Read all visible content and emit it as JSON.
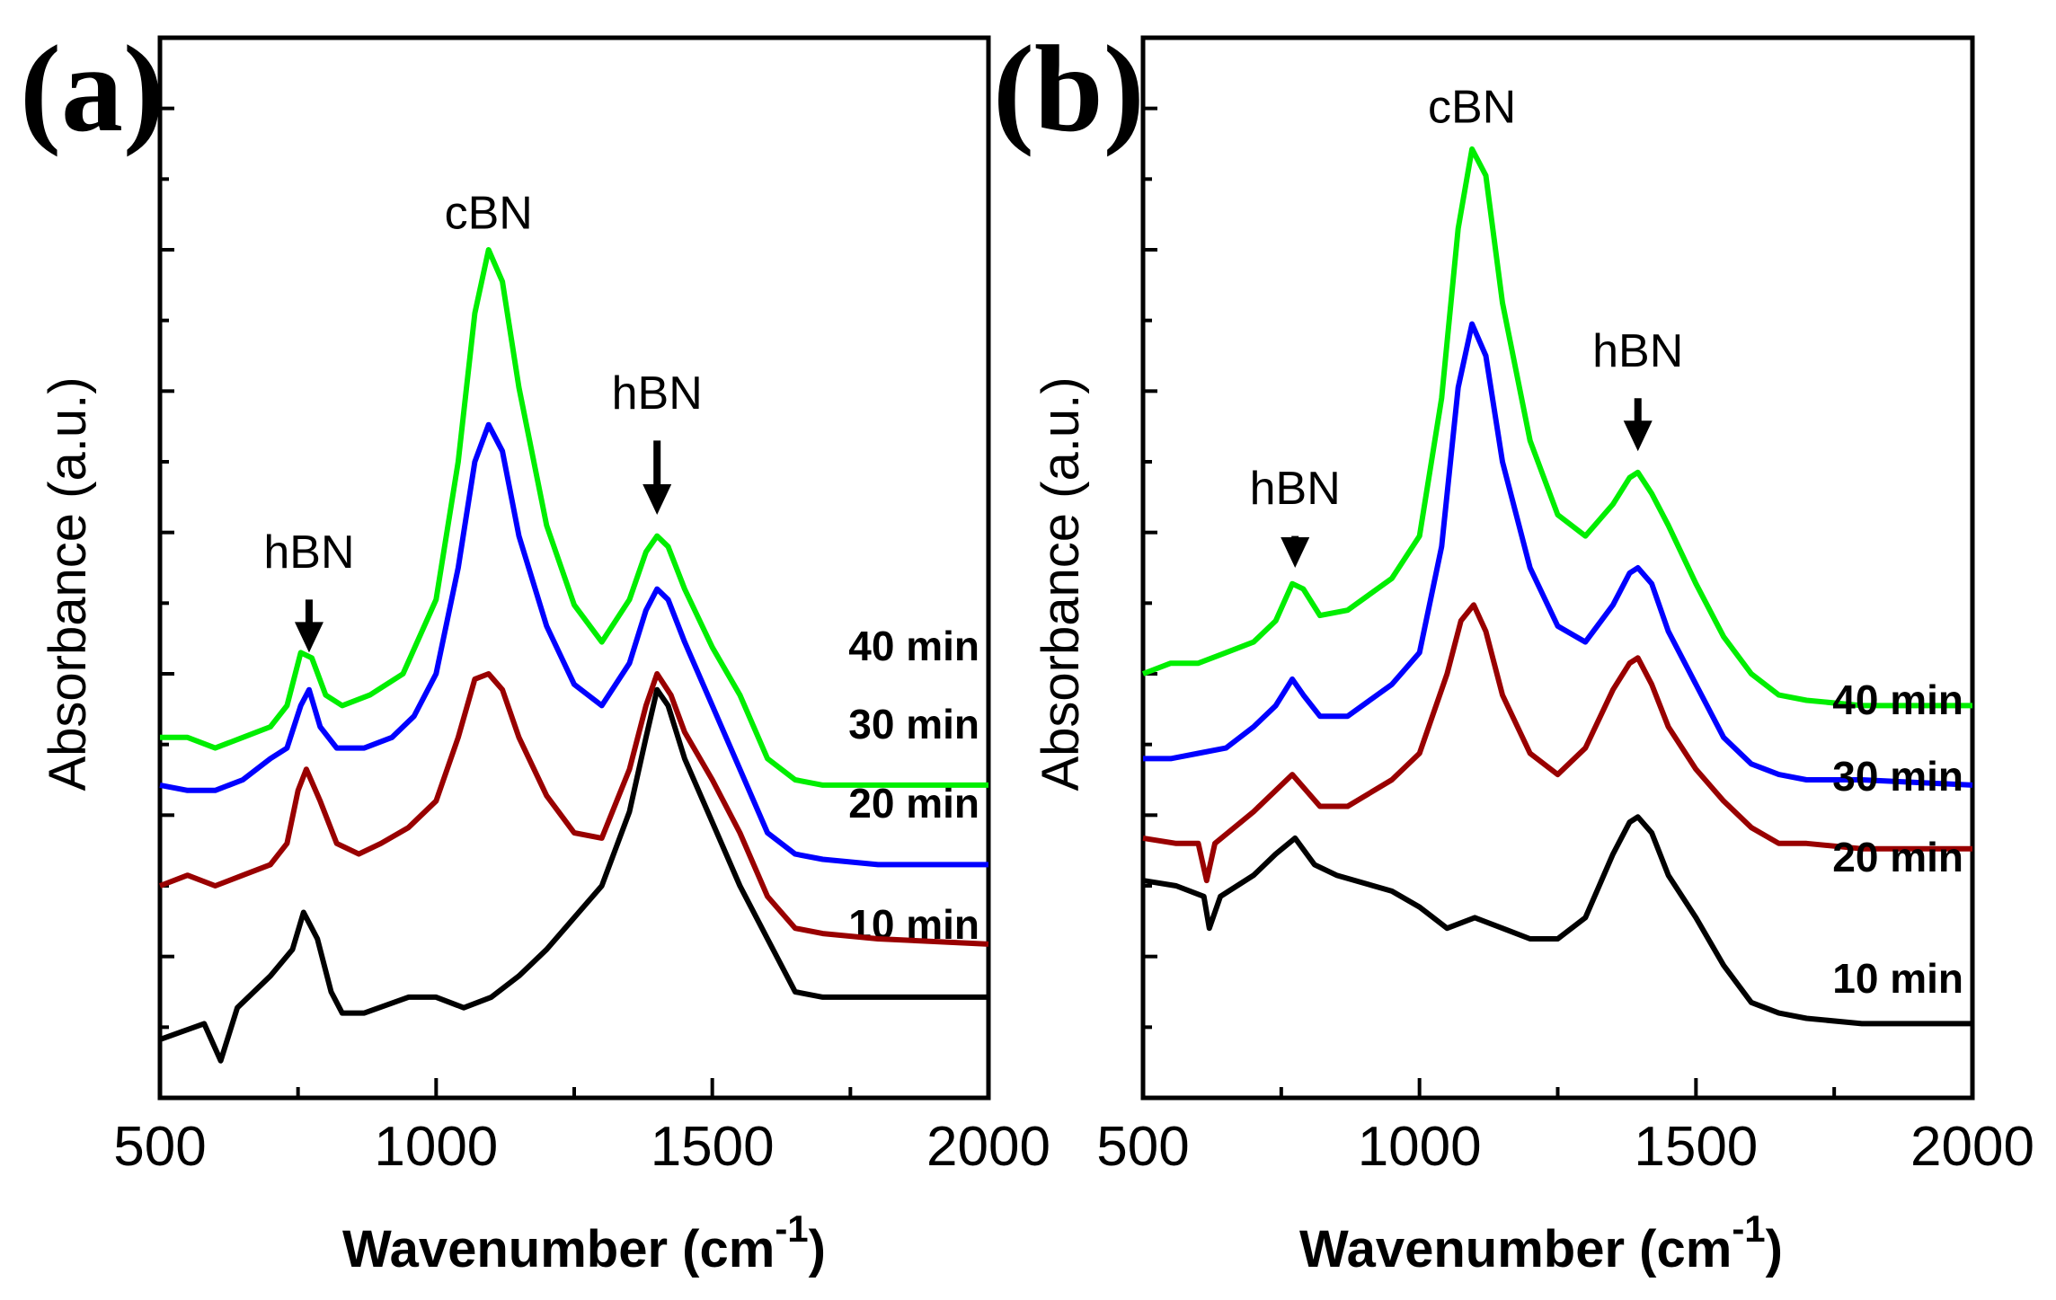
{
  "colors": {
    "10 min": "#000000",
    "20 min": "#990000",
    "30 min": "#0000ff",
    "40 min": "#00ee00"
  },
  "chart_data": [
    {
      "type": "line",
      "panel": "(a)",
      "xlabel_main": "Wavenumber (cm",
      "xlabel_sup": "-1",
      "xlabel_close": ")",
      "ylabel": "Absorbance (a.u.)",
      "xlim": [
        500,
        2000
      ],
      "ylim": [
        0,
        100
      ],
      "xticks": [
        500,
        1000,
        1500,
        2000
      ],
      "series": [
        {
          "name": "10 min",
          "label": "10 min",
          "color": "#000000",
          "points": [
            [
              500,
              5.5
            ],
            [
              580,
              7
            ],
            [
              610,
              3.5
            ],
            [
              640,
              8.5
            ],
            [
              700,
              11.5
            ],
            [
              740,
              14
            ],
            [
              760,
              17.5
            ],
            [
              785,
              15
            ],
            [
              810,
              10
            ],
            [
              830,
              8
            ],
            [
              870,
              8
            ],
            [
              950,
              9.5
            ],
            [
              1000,
              9.5
            ],
            [
              1050,
              8.5
            ],
            [
              1100,
              9.5
            ],
            [
              1150,
              11.5
            ],
            [
              1200,
              14
            ],
            [
              1250,
              17
            ],
            [
              1300,
              20
            ],
            [
              1350,
              27
            ],
            [
              1380,
              34
            ],
            [
              1400,
              38.5
            ],
            [
              1420,
              37
            ],
            [
              1450,
              32
            ],
            [
              1500,
              26
            ],
            [
              1550,
              20
            ],
            [
              1600,
              15
            ],
            [
              1650,
              10
            ],
            [
              1700,
              9.5
            ],
            [
              1800,
              9.5
            ],
            [
              2000,
              9.5
            ]
          ]
        },
        {
          "name": "20 min",
          "label": "20 min",
          "color": "#990000",
          "points": [
            [
              500,
              20
            ],
            [
              550,
              21
            ],
            [
              600,
              20
            ],
            [
              650,
              21
            ],
            [
              700,
              22
            ],
            [
              730,
              24
            ],
            [
              750,
              29
            ],
            [
              765,
              31
            ],
            [
              790,
              28
            ],
            [
              820,
              24
            ],
            [
              860,
              23
            ],
            [
              900,
              24
            ],
            [
              950,
              25.5
            ],
            [
              1000,
              28
            ],
            [
              1040,
              34
            ],
            [
              1070,
              39.5
            ],
            [
              1095,
              40
            ],
            [
              1120,
              38.5
            ],
            [
              1150,
              34
            ],
            [
              1200,
              28.5
            ],
            [
              1250,
              25
            ],
            [
              1300,
              24.5
            ],
            [
              1350,
              31
            ],
            [
              1380,
              37
            ],
            [
              1400,
              40
            ],
            [
              1425,
              38
            ],
            [
              1450,
              34.5
            ],
            [
              1500,
              30
            ],
            [
              1550,
              25
            ],
            [
              1600,
              19
            ],
            [
              1650,
              16
            ],
            [
              1700,
              15.5
            ],
            [
              1800,
              15
            ],
            [
              2000,
              14.5
            ]
          ]
        },
        {
          "name": "30 min",
          "label": "30 min",
          "color": "#0000ff",
          "points": [
            [
              500,
              29.5
            ],
            [
              550,
              29
            ],
            [
              600,
              29
            ],
            [
              650,
              30
            ],
            [
              700,
              32
            ],
            [
              730,
              33
            ],
            [
              755,
              37
            ],
            [
              770,
              38.5
            ],
            [
              790,
              35
            ],
            [
              820,
              33
            ],
            [
              870,
              33
            ],
            [
              920,
              34
            ],
            [
              960,
              36
            ],
            [
              1000,
              40
            ],
            [
              1040,
              50
            ],
            [
              1070,
              60
            ],
            [
              1095,
              63.5
            ],
            [
              1120,
              61
            ],
            [
              1150,
              53
            ],
            [
              1200,
              44.5
            ],
            [
              1250,
              39
            ],
            [
              1300,
              37
            ],
            [
              1350,
              41
            ],
            [
              1380,
              46
            ],
            [
              1400,
              48
            ],
            [
              1420,
              47
            ],
            [
              1450,
              43
            ],
            [
              1500,
              37
            ],
            [
              1550,
              31
            ],
            [
              1600,
              25
            ],
            [
              1650,
              23
            ],
            [
              1700,
              22.5
            ],
            [
              1800,
              22
            ],
            [
              2000,
              22
            ]
          ]
        },
        {
          "name": "40 min",
          "label": "40 min",
          "color": "#00ee00",
          "points": [
            [
              500,
              34
            ],
            [
              550,
              34
            ],
            [
              600,
              33
            ],
            [
              650,
              34
            ],
            [
              700,
              35
            ],
            [
              730,
              37
            ],
            [
              755,
              42
            ],
            [
              775,
              41.5
            ],
            [
              800,
              38
            ],
            [
              830,
              37
            ],
            [
              880,
              38
            ],
            [
              940,
              40
            ],
            [
              1000,
              47
            ],
            [
              1040,
              60
            ],
            [
              1070,
              74
            ],
            [
              1095,
              80
            ],
            [
              1120,
              77
            ],
            [
              1150,
              67
            ],
            [
              1200,
              54
            ],
            [
              1250,
              46.5
            ],
            [
              1300,
              43
            ],
            [
              1350,
              47
            ],
            [
              1380,
              51.5
            ],
            [
              1400,
              53
            ],
            [
              1420,
              52
            ],
            [
              1450,
              48
            ],
            [
              1500,
              42.5
            ],
            [
              1550,
              38
            ],
            [
              1600,
              32
            ],
            [
              1650,
              30
            ],
            [
              1700,
              29.5
            ],
            [
              1800,
              29.5
            ],
            [
              2000,
              29.5
            ]
          ]
        }
      ],
      "annotations": [
        {
          "text": "cBN",
          "x": 1095,
          "y": 82
        },
        {
          "text": "hBN",
          "x": 770,
          "y": 50,
          "arrow_from": 47,
          "arrow_to": 42
        },
        {
          "text": "hBN",
          "x": 1400,
          "y": 65,
          "arrow_from": 62,
          "arrow_to": 55
        }
      ]
    },
    {
      "type": "line",
      "panel": "(b)",
      "xlabel_main": "Wavenumber (cm",
      "xlabel_sup": "-1",
      "xlabel_close": ")",
      "ylabel": "Absorbance (a.u.)",
      "xlim": [
        500,
        2000
      ],
      "ylim": [
        0,
        100
      ],
      "xticks": [
        500,
        1000,
        1500,
        2000
      ],
      "series": [
        {
          "name": "10 min",
          "label": "10 min",
          "color": "#000000",
          "points": [
            [
              500,
              20.5
            ],
            [
              560,
              20
            ],
            [
              610,
              19
            ],
            [
              620,
              16
            ],
            [
              640,
              19
            ],
            [
              700,
              21
            ],
            [
              740,
              23
            ],
            [
              775,
              24.5
            ],
            [
              810,
              22
            ],
            [
              850,
              21
            ],
            [
              950,
              19.5
            ],
            [
              1000,
              18
            ],
            [
              1050,
              16
            ],
            [
              1100,
              17
            ],
            [
              1150,
              16
            ],
            [
              1200,
              15
            ],
            [
              1250,
              15
            ],
            [
              1300,
              17
            ],
            [
              1350,
              23
            ],
            [
              1380,
              26
            ],
            [
              1395,
              26.5
            ],
            [
              1420,
              25
            ],
            [
              1450,
              21
            ],
            [
              1500,
              17
            ],
            [
              1550,
              12.5
            ],
            [
              1600,
              9
            ],
            [
              1650,
              8
            ],
            [
              1700,
              7.5
            ],
            [
              1800,
              7
            ],
            [
              2000,
              7
            ]
          ]
        },
        {
          "name": "20 min",
          "label": "20 min",
          "color": "#990000",
          "points": [
            [
              500,
              24.5
            ],
            [
              560,
              24
            ],
            [
              600,
              24
            ],
            [
              615,
              20.5
            ],
            [
              630,
              24
            ],
            [
              700,
              27
            ],
            [
              740,
              29
            ],
            [
              770,
              30.5
            ],
            [
              795,
              29
            ],
            [
              820,
              27.5
            ],
            [
              870,
              27.5
            ],
            [
              950,
              30
            ],
            [
              1000,
              32.5
            ],
            [
              1050,
              40
            ],
            [
              1075,
              45
            ],
            [
              1098,
              46.5
            ],
            [
              1120,
              44
            ],
            [
              1150,
              38
            ],
            [
              1200,
              32.5
            ],
            [
              1250,
              30.5
            ],
            [
              1300,
              33
            ],
            [
              1350,
              38.5
            ],
            [
              1380,
              41
            ],
            [
              1395,
              41.5
            ],
            [
              1420,
              39
            ],
            [
              1450,
              35
            ],
            [
              1500,
              31
            ],
            [
              1550,
              28
            ],
            [
              1600,
              25.5
            ],
            [
              1650,
              24
            ],
            [
              1700,
              24
            ],
            [
              1800,
              23.5
            ],
            [
              2000,
              23.5
            ]
          ]
        },
        {
          "name": "30 min",
          "label": "30 min",
          "color": "#0000ff",
          "points": [
            [
              500,
              32
            ],
            [
              550,
              32
            ],
            [
              600,
              32.5
            ],
            [
              650,
              33
            ],
            [
              700,
              35
            ],
            [
              740,
              37
            ],
            [
              770,
              39.5
            ],
            [
              790,
              38
            ],
            [
              820,
              36
            ],
            [
              870,
              36
            ],
            [
              950,
              39
            ],
            [
              1000,
              42
            ],
            [
              1040,
              52
            ],
            [
              1070,
              67
            ],
            [
              1095,
              73
            ],
            [
              1120,
              70
            ],
            [
              1150,
              60
            ],
            [
              1200,
              50
            ],
            [
              1250,
              44.5
            ],
            [
              1300,
              43
            ],
            [
              1350,
              46.5
            ],
            [
              1380,
              49.5
            ],
            [
              1395,
              50
            ],
            [
              1420,
              48.5
            ],
            [
              1450,
              44
            ],
            [
              1500,
              39
            ],
            [
              1550,
              34
            ],
            [
              1600,
              31.5
            ],
            [
              1650,
              30.5
            ],
            [
              1700,
              30
            ],
            [
              1800,
              30
            ],
            [
              2000,
              29.5
            ]
          ]
        },
        {
          "name": "40 min",
          "label": "40 min",
          "color": "#00ee00",
          "points": [
            [
              500,
              40
            ],
            [
              550,
              41
            ],
            [
              600,
              41
            ],
            [
              650,
              42
            ],
            [
              700,
              43
            ],
            [
              740,
              45
            ],
            [
              770,
              48.5
            ],
            [
              790,
              48
            ],
            [
              820,
              45.5
            ],
            [
              870,
              46
            ],
            [
              950,
              49
            ],
            [
              1000,
              53
            ],
            [
              1040,
              66
            ],
            [
              1070,
              82
            ],
            [
              1095,
              89.5
            ],
            [
              1120,
              87
            ],
            [
              1150,
              75
            ],
            [
              1200,
              62
            ],
            [
              1250,
              55
            ],
            [
              1300,
              53
            ],
            [
              1350,
              56
            ],
            [
              1380,
              58.5
            ],
            [
              1395,
              59
            ],
            [
              1420,
              57
            ],
            [
              1450,
              54
            ],
            [
              1500,
              48.5
            ],
            [
              1550,
              43.5
            ],
            [
              1600,
              40
            ],
            [
              1650,
              38
            ],
            [
              1700,
              37.5
            ],
            [
              1800,
              37
            ],
            [
              2000,
              37
            ]
          ]
        }
      ],
      "annotations": [
        {
          "text": "cBN",
          "x": 1095,
          "y": 92
        },
        {
          "text": "hBN",
          "x": 775,
          "y": 56,
          "arrow_from": 53,
          "arrow_to": 50
        },
        {
          "text": "hBN",
          "x": 1395,
          "y": 69,
          "arrow_from": 66,
          "arrow_to": 61
        }
      ]
    }
  ]
}
